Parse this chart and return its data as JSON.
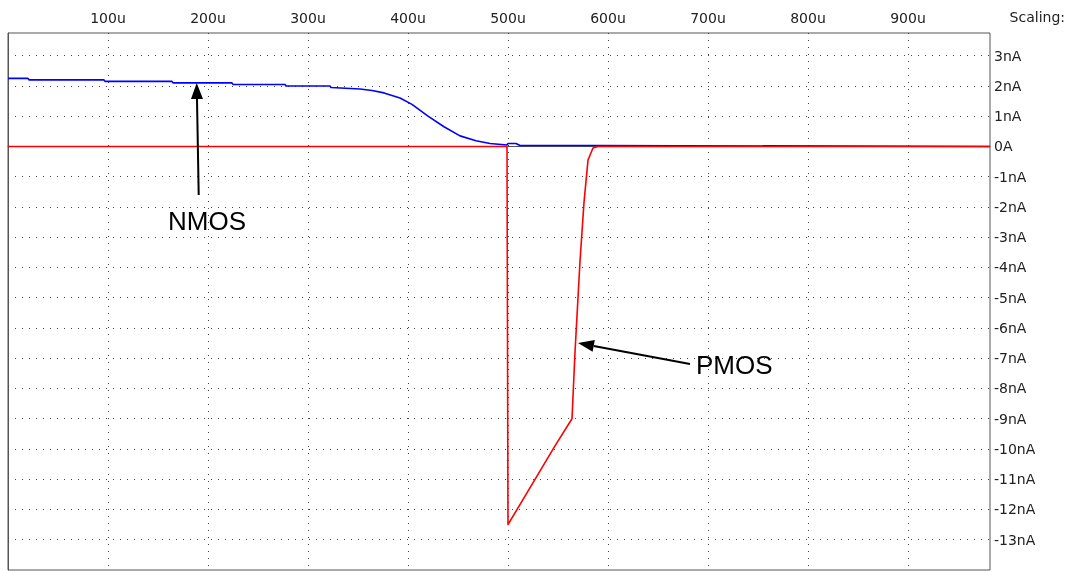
{
  "chart_data": {
    "type": "line",
    "xlim": [
      0,
      982
    ],
    "ylim": [
      -14,
      3.75
    ],
    "grid": true,
    "marker": "none",
    "line_style": "solid",
    "xticks": [
      {
        "value": 100,
        "label": "100u"
      },
      {
        "value": 200,
        "label": "200u"
      },
      {
        "value": 300,
        "label": "300u"
      },
      {
        "value": 400,
        "label": "400u"
      },
      {
        "value": 500,
        "label": "500u"
      },
      {
        "value": 600,
        "label": "600u"
      },
      {
        "value": 700,
        "label": "700u"
      },
      {
        "value": 800,
        "label": "800u"
      },
      {
        "value": 900,
        "label": "900u"
      }
    ],
    "yticks": [
      {
        "value": 3,
        "label": "3nA"
      },
      {
        "value": 2,
        "label": "2nA"
      },
      {
        "value": 1,
        "label": "1nA"
      },
      {
        "value": 0,
        "label": "0A"
      },
      {
        "value": -1,
        "label": "-1nA"
      },
      {
        "value": -2,
        "label": "-2nA"
      },
      {
        "value": -3,
        "label": "-3nA"
      },
      {
        "value": -4,
        "label": "-4nA"
      },
      {
        "value": -5,
        "label": "-5nA"
      },
      {
        "value": -6,
        "label": "-6nA"
      },
      {
        "value": -7,
        "label": "-7nA"
      },
      {
        "value": -8,
        "label": "-8nA"
      },
      {
        "value": -9,
        "label": "-9nA"
      },
      {
        "value": -10,
        "label": "-10nA"
      },
      {
        "value": -11,
        "label": "-11nA"
      },
      {
        "value": -12,
        "label": "-12nA"
      },
      {
        "value": -13,
        "label": "-13nA"
      }
    ],
    "series": [
      {
        "color": "#0000ff",
        "x": [
          0,
          20,
          21,
          96,
          97,
          164,
          165,
          224,
          225,
          277,
          278,
          322,
          323,
          352,
          364,
          376,
          392,
          404,
          420,
          436,
          452,
          468,
          482,
          499,
          500,
          508,
          512,
          590,
          982
        ],
        "values": [
          2.25,
          2.25,
          2.2,
          2.2,
          2.15,
          2.15,
          2.1,
          2.1,
          2.05,
          2.05,
          2.0,
          2.0,
          1.95,
          1.9,
          1.85,
          1.77,
          1.6,
          1.39,
          1.0,
          0.65,
          0.35,
          0.19,
          0.1,
          0.05,
          0.1,
          0.1,
          0.03,
          0.03,
          0
        ]
      },
      {
        "color": "#ff0000",
        "x": [
          0,
          499,
          500,
          547,
          564,
          567,
          572,
          576,
          580,
          585,
          590,
          982
        ],
        "values": [
          0,
          0,
          -12.5,
          -9.9,
          -9.0,
          -6.8,
          -3.8,
          -1.85,
          -0.45,
          -0.05,
          0,
          0
        ]
      }
    ],
    "annotations": [
      "NMOS",
      "PMOS",
      "Scaling:"
    ]
  }
}
